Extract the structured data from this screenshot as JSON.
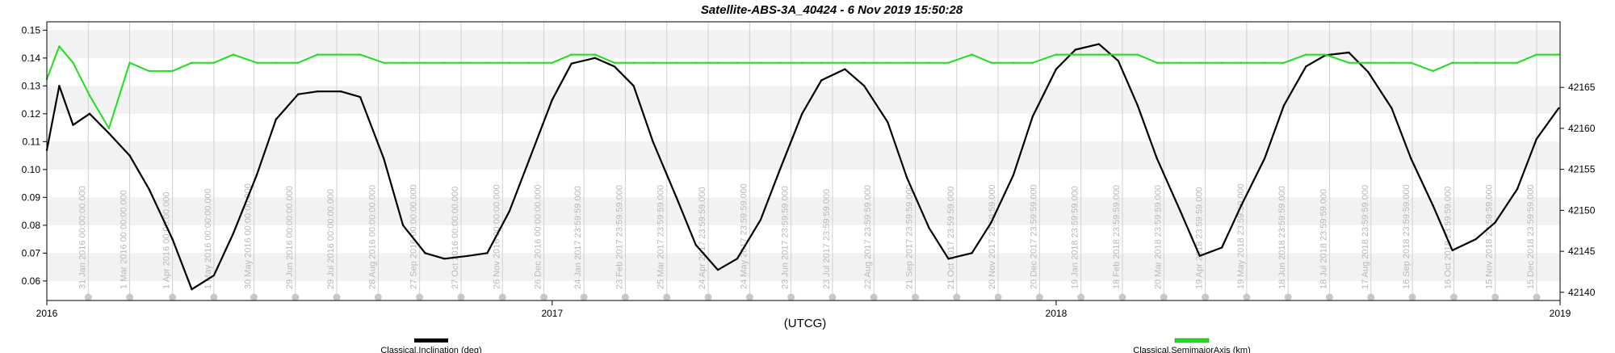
{
  "chart_data": {
    "type": "line",
    "title": "Satellite-ABS-3A_40424 -  6 Nov 2019 15:50:28",
    "xlabel": "(UTCG)",
    "x_ticks": [
      "2016",
      "2017",
      "2018",
      "2019"
    ],
    "xlim": [
      "2016-01-01",
      "2019-01-01"
    ],
    "y_left": {
      "ylim": [
        0.053,
        0.153
      ],
      "ticks": [
        "0.06",
        "0.07",
        "0.08",
        "0.09",
        "0.10",
        "0.11",
        "0.12",
        "0.13",
        "0.14",
        "0.15"
      ]
    },
    "y_right": {
      "ylim": [
        42139,
        42173
      ],
      "ticks": [
        "42140",
        "42145",
        "42150",
        "42155",
        "42160",
        "42165"
      ]
    },
    "grid": true,
    "legend_position": "bottom",
    "event_labels": [
      "31 Jan 2016 00:00:00.000",
      "1 Mar 2016 00:00:00.000",
      "1 Apr 2016 00:00:00.000",
      "1 May 2016 00:00:00.000",
      "30 May 2016 00:00:00.000",
      "29 Jun 2016 00:00:00.000",
      "29 Jul 2016 00:00:00.000",
      "28 Aug 2016 00:00:00.000",
      "27 Sep 2016 00:00:00.000",
      "27 Oct 2016 00:00:00.000",
      "26 Nov 2016 00:00:00.000",
      "26 Dec 2016 00:00:00.000",
      "24 Jan 2017 23:59:59.000",
      "23 Feb 2017 23:59:59.000",
      "25 Mar 2017 23:59:59.000",
      "24 Apr 2017 23:59:59.000",
      "24 May 2017 23:59:59.000",
      "23 Jun 2017 23:59:59.000",
      "23 Jul 2017 23:59:59.000",
      "22 Aug 2017 23:59:59.000",
      "21 Sep 2017 23:59:59.000",
      "21 Oct 2017 23:59:59.000",
      "20 Nov 2017 23:59:59.000",
      "20 Dec 2017 23:59:59.000",
      "19 Jan 2018 23:59:59.000",
      "18 Feb 2018 23:59:59.000",
      "20 Mar 2018 23:59:59.000",
      "19 Apr 2018 23:59:59.000",
      "19 May 2018 23:59:59.000",
      "18 Jun 2018 23:59:59.000",
      "18 Jul 2018 23:59:59.000",
      "17 Aug 2018 23:59:59.000",
      "16 Sep 2018 23:59:59.000",
      "16 Oct 2018 23:59:59.000",
      "15 Nov 2018 23:59:59.000",
      "15 Dec 2018 23:59:59.000"
    ],
    "series": [
      {
        "name": "Classical.Inclination (deg)",
        "axis": "left",
        "color": "#000000",
        "x": [
          "2016-01-01",
          "2016-01-10",
          "2016-01-20",
          "2016-02-01",
          "2016-02-15",
          "2016-03-01",
          "2016-03-15",
          "2016-04-01",
          "2016-04-15",
          "2016-05-01",
          "2016-05-15",
          "2016-06-01",
          "2016-06-15",
          "2016-07-01",
          "2016-07-15",
          "2016-08-01",
          "2016-08-15",
          "2016-09-01",
          "2016-09-15",
          "2016-10-01",
          "2016-10-15",
          "2016-11-01",
          "2016-11-15",
          "2016-12-01",
          "2016-12-15",
          "2017-01-01",
          "2017-01-15",
          "2017-02-01",
          "2017-02-15",
          "2017-03-01",
          "2017-03-15",
          "2017-04-01",
          "2017-04-15",
          "2017-05-01",
          "2017-05-15",
          "2017-06-01",
          "2017-06-15",
          "2017-07-01",
          "2017-07-15",
          "2017-08-01",
          "2017-08-15",
          "2017-09-01",
          "2017-09-15",
          "2017-10-01",
          "2017-10-15",
          "2017-11-01",
          "2017-11-15",
          "2017-12-01",
          "2017-12-15",
          "2018-01-01",
          "2018-01-15",
          "2018-02-01",
          "2018-02-15",
          "2018-03-01",
          "2018-03-15",
          "2018-04-01",
          "2018-04-15",
          "2018-05-01",
          "2018-05-15",
          "2018-06-01",
          "2018-06-15",
          "2018-07-01",
          "2018-07-15",
          "2018-08-01",
          "2018-08-15",
          "2018-09-01",
          "2018-09-15",
          "2018-10-01",
          "2018-10-15",
          "2018-11-01",
          "2018-11-15",
          "2018-12-01",
          "2018-12-15",
          "2018-12-31"
        ],
        "values": [
          0.107,
          0.13,
          0.116,
          0.12,
          0.113,
          0.105,
          0.093,
          0.075,
          0.057,
          0.062,
          0.077,
          0.098,
          0.118,
          0.127,
          0.128,
          0.128,
          0.126,
          0.104,
          0.08,
          0.07,
          0.068,
          0.069,
          0.07,
          0.085,
          0.103,
          0.125,
          0.138,
          0.14,
          0.137,
          0.13,
          0.11,
          0.09,
          0.073,
          0.064,
          0.068,
          0.082,
          0.1,
          0.12,
          0.132,
          0.136,
          0.13,
          0.117,
          0.097,
          0.079,
          0.068,
          0.07,
          0.081,
          0.098,
          0.119,
          0.136,
          0.143,
          0.145,
          0.139,
          0.123,
          0.104,
          0.085,
          0.069,
          0.072,
          0.087,
          0.104,
          0.123,
          0.137,
          0.141,
          0.142,
          0.135,
          0.122,
          0.104,
          0.087,
          0.071,
          0.075,
          0.081,
          0.093,
          0.111,
          0.122
        ]
      },
      {
        "name": "Classical.SemimajorAxis (km)",
        "axis": "right",
        "color": "#1be01b",
        "x": [
          "2016-01-01",
          "2016-01-10",
          "2016-01-20",
          "2016-02-01",
          "2016-02-15",
          "2016-03-01",
          "2016-03-15",
          "2016-04-01",
          "2016-04-15",
          "2016-05-01",
          "2016-05-15",
          "2016-06-01",
          "2016-06-15",
          "2016-07-01",
          "2016-07-15",
          "2016-08-01",
          "2016-08-15",
          "2016-09-01",
          "2016-09-15",
          "2016-10-01",
          "2016-10-15",
          "2016-11-01",
          "2016-11-15",
          "2016-12-01",
          "2016-12-15",
          "2017-01-01",
          "2017-01-15",
          "2017-02-01",
          "2017-02-15",
          "2017-03-01",
          "2017-03-15",
          "2017-04-01",
          "2017-04-15",
          "2017-05-01",
          "2017-05-15",
          "2017-06-01",
          "2017-06-15",
          "2017-07-01",
          "2017-07-15",
          "2017-08-01",
          "2017-08-15",
          "2017-09-01",
          "2017-09-15",
          "2017-10-01",
          "2017-10-15",
          "2017-11-01",
          "2017-11-15",
          "2017-12-01",
          "2017-12-15",
          "2018-01-01",
          "2018-01-15",
          "2018-02-01",
          "2018-02-15",
          "2018-03-01",
          "2018-03-15",
          "2018-04-01",
          "2018-04-15",
          "2018-05-01",
          "2018-05-15",
          "2018-06-01",
          "2018-06-15",
          "2018-07-01",
          "2018-07-15",
          "2018-08-01",
          "2018-08-15",
          "2018-09-01",
          "2018-09-15",
          "2018-10-01",
          "2018-10-15",
          "2018-11-01",
          "2018-11-15",
          "2018-12-01",
          "2018-12-15",
          "2018-12-31"
        ],
        "values": [
          42166,
          42170,
          42168,
          42164,
          42160,
          42168,
          42167,
          42167,
          42168,
          42168,
          42169,
          42168,
          42168,
          42168,
          42169,
          42169,
          42169,
          42168,
          42168,
          42168,
          42168,
          42168,
          42168,
          42168,
          42168,
          42168,
          42169,
          42169,
          42168,
          42168,
          42168,
          42168,
          42168,
          42168,
          42168,
          42168,
          42168,
          42168,
          42168,
          42168,
          42168,
          42168,
          42168,
          42168,
          42168,
          42169,
          42168,
          42168,
          42168,
          42169,
          42169,
          42169,
          42169,
          42169,
          42168,
          42168,
          42168,
          42168,
          42168,
          42168,
          42168,
          42169,
          42169,
          42168,
          42168,
          42168,
          42168,
          42167,
          42168,
          42168,
          42168,
          42168,
          42169,
          42169
        ]
      }
    ]
  }
}
